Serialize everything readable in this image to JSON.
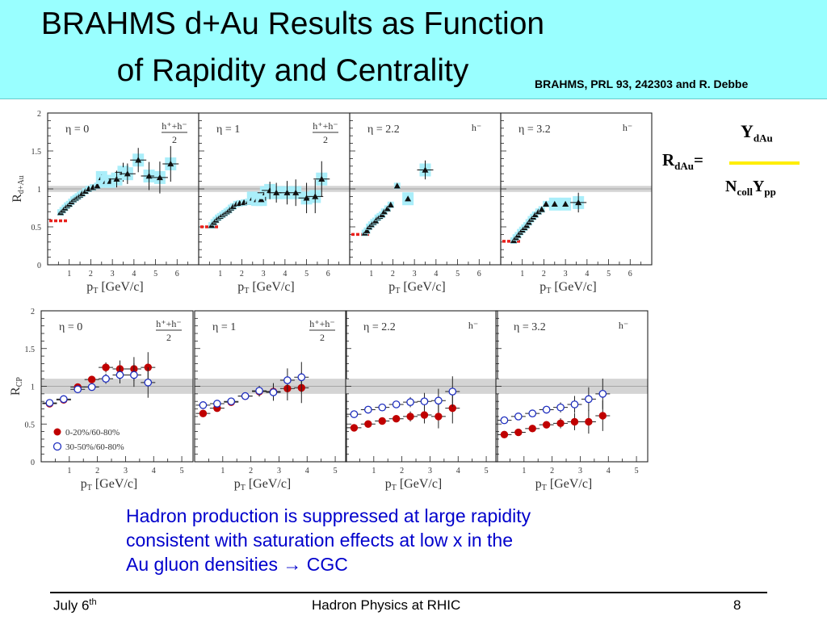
{
  "slide": {
    "title_line1": "BRAHMS d+Au Results as Function",
    "title_line2": "of Rapidity and Centrality",
    "citation": "BRAHMS, PRL 93, 242303 and R. Debbe",
    "formula": {
      "lhs": "R",
      "lhs_sub": "dAu",
      "equals": "=",
      "num": "Y",
      "num_sub": "dAu",
      "den1": "N",
      "den1_sub": "coll",
      "den2": "Y",
      "den2_sub": "pp",
      "fraction_color": "#ffee00"
    },
    "body_lines": [
      "Hadron production is suppressed at large rapidity",
      "consistent with saturation effects at low x in the",
      "Au gluon densities → CGC"
    ],
    "body_color": "#0000cc",
    "footer": {
      "date": "July 6",
      "date_sup": "th",
      "center": "Hadron Physics at RHIC",
      "page": "8"
    }
  },
  "chart_data": [
    {
      "type": "scatter",
      "quantity": "RdAu",
      "ylabel": "R",
      "ylabel_sub": "d+Au",
      "xlabel": "p",
      "xlabel_sub": "T",
      "xlabel_unit": "[GeV/c]",
      "ylim": [
        0,
        2
      ],
      "xlim": [
        0,
        7
      ],
      "yticks": [
        "0",
        "0.5",
        "1",
        "1.5",
        "2"
      ],
      "xticks": [
        "1",
        "2",
        "3",
        "4",
        "5",
        "6"
      ],
      "reference_band": [
        0.96,
        1.04
      ],
      "panels": [
        {
          "eta_label": "η = 0",
          "charge": "h⁺+h⁻",
          "charge_den": "2",
          "ref_low": 0.58,
          "series": [
            {
              "marker": "triangle",
              "points": [
                [
                  0.6,
                  0.69
                ],
                [
                  0.7,
                  0.72
                ],
                [
                  0.8,
                  0.75
                ],
                [
                  0.9,
                  0.78
                ],
                [
                  1.0,
                  0.8
                ],
                [
                  1.1,
                  0.83
                ],
                [
                  1.2,
                  0.86
                ],
                [
                  1.3,
                  0.88
                ],
                [
                  1.4,
                  0.9
                ],
                [
                  1.5,
                  0.92
                ],
                [
                  1.6,
                  0.94
                ],
                [
                  1.75,
                  0.97
                ],
                [
                  1.9,
                  1.0
                ],
                [
                  2.1,
                  1.02
                ],
                [
                  2.3,
                  1.04
                ],
                [
                  2.5,
                  1.15
                ],
                [
                  2.7,
                  1.1
                ],
                [
                  2.9,
                  1.1
                ],
                [
                  3.2,
                  1.13
                ],
                [
                  3.5,
                  1.22
                ],
                [
                  3.7,
                  1.2
                ],
                [
                  4.2,
                  1.38
                ],
                [
                  4.7,
                  1.17
                ],
                [
                  5.2,
                  1.15
                ],
                [
                  5.7,
                  1.33
                ]
              ]
            }
          ]
        },
        {
          "eta_label": "η = 1",
          "charge": "h⁺+h⁻",
          "charge_den": "2",
          "ref_low": 0.5,
          "series": [
            {
              "marker": "triangle",
              "points": [
                [
                  0.6,
                  0.52
                ],
                [
                  0.7,
                  0.56
                ],
                [
                  0.8,
                  0.59
                ],
                [
                  0.9,
                  0.62
                ],
                [
                  1.0,
                  0.64
                ],
                [
                  1.1,
                  0.66
                ],
                [
                  1.2,
                  0.68
                ],
                [
                  1.3,
                  0.7
                ],
                [
                  1.4,
                  0.72
                ],
                [
                  1.5,
                  0.75
                ],
                [
                  1.6,
                  0.77
                ],
                [
                  1.75,
                  0.8
                ],
                [
                  1.9,
                  0.81
                ],
                [
                  2.1,
                  0.82
                ],
                [
                  2.3,
                  0.83
                ],
                [
                  2.5,
                  0.88
                ],
                [
                  2.7,
                  0.86
                ],
                [
                  2.9,
                  0.86
                ],
                [
                  3.1,
                  0.95
                ],
                [
                  3.3,
                  0.98
                ],
                [
                  3.6,
                  0.95
                ],
                [
                  4.1,
                  0.95
                ],
                [
                  4.5,
                  0.95
                ],
                [
                  5.0,
                  0.88
                ],
                [
                  5.4,
                  0.9
                ],
                [
                  5.7,
                  1.13
                ]
              ]
            }
          ]
        },
        {
          "eta_label": "η = 2.2",
          "charge": "h⁻",
          "charge_den": "",
          "ref_low": 0.4,
          "series": [
            {
              "marker": "triangle",
              "points": [
                [
                  0.7,
                  0.42
                ],
                [
                  0.8,
                  0.45
                ],
                [
                  0.9,
                  0.5
                ],
                [
                  1.0,
                  0.53
                ],
                [
                  1.1,
                  0.56
                ],
                [
                  1.2,
                  0.58
                ],
                [
                  1.3,
                  0.62
                ],
                [
                  1.4,
                  0.64
                ],
                [
                  1.5,
                  0.66
                ],
                [
                  1.6,
                  0.7
                ],
                [
                  1.75,
                  0.74
                ],
                [
                  1.9,
                  0.79
                ],
                [
                  2.2,
                  1.04
                ],
                [
                  2.7,
                  0.87
                ],
                [
                  3.5,
                  1.25
                ]
              ]
            }
          ]
        },
        {
          "eta_label": "η = 3.2",
          "charge": "h⁻",
          "charge_den": "",
          "ref_low": 0.31,
          "series": [
            {
              "marker": "triangle",
              "points": [
                [
                  0.6,
                  0.32
                ],
                [
                  0.7,
                  0.36
                ],
                [
                  0.8,
                  0.39
                ],
                [
                  0.9,
                  0.43
                ],
                [
                  1.0,
                  0.46
                ],
                [
                  1.1,
                  0.49
                ],
                [
                  1.2,
                  0.52
                ],
                [
                  1.3,
                  0.56
                ],
                [
                  1.4,
                  0.6
                ],
                [
                  1.5,
                  0.63
                ],
                [
                  1.6,
                  0.66
                ],
                [
                  1.75,
                  0.7
                ],
                [
                  1.9,
                  0.73
                ],
                [
                  2.1,
                  0.8
                ],
                [
                  2.5,
                  0.8
                ],
                [
                  3.0,
                  0.8
                ],
                [
                  3.6,
                  0.82
                ]
              ]
            }
          ]
        }
      ]
    },
    {
      "type": "scatter",
      "quantity": "RCP",
      "ylabel": "R",
      "ylabel_sub": "CP",
      "xlabel": "p",
      "xlabel_sub": "T",
      "xlabel_unit": "[GeV/c]",
      "ylim": [
        0,
        2
      ],
      "xlim": [
        0,
        5.4
      ],
      "yticks": [
        "0",
        "0.5",
        "1",
        "1.5",
        "2"
      ],
      "xticks": [
        "1",
        "2",
        "3",
        "4",
        "5"
      ],
      "reference_band": [
        0.9,
        1.1
      ],
      "legend": [
        {
          "label": "0-20%/60-80%",
          "marker": "filled-circle",
          "color": "#c00000"
        },
        {
          "label": "30-50%/60-80%",
          "marker": "open-circle",
          "color": "#1f2fbf"
        }
      ],
      "panels": [
        {
          "eta_label": "η = 0",
          "charge": "h⁺+h⁻",
          "charge_den": "2",
          "series": [
            {
              "name": "0-20%/60-80%",
              "points": [
                [
                  0.3,
                  0.77
                ],
                [
                  0.8,
                  0.82
                ],
                [
                  1.3,
                  0.99
                ],
                [
                  1.8,
                  1.09
                ],
                [
                  2.3,
                  1.25
                ],
                [
                  2.8,
                  1.23
                ],
                [
                  3.3,
                  1.23
                ],
                [
                  3.8,
                  1.25
                ]
              ]
            },
            {
              "name": "30-50%/60-80%",
              "points": [
                [
                  0.3,
                  0.78
                ],
                [
                  0.8,
                  0.83
                ],
                [
                  1.3,
                  0.96
                ],
                [
                  1.8,
                  0.99
                ],
                [
                  2.3,
                  1.1
                ],
                [
                  2.8,
                  1.15
                ],
                [
                  3.3,
                  1.15
                ],
                [
                  3.8,
                  1.05
                ]
              ]
            }
          ]
        },
        {
          "eta_label": "η = 1",
          "charge": "h⁺+h⁻",
          "charge_den": "2",
          "series": [
            {
              "name": "0-20%/60-80%",
              "points": [
                [
                  0.3,
                  0.64
                ],
                [
                  0.8,
                  0.71
                ],
                [
                  1.3,
                  0.79
                ],
                [
                  1.8,
                  0.87
                ],
                [
                  2.3,
                  0.93
                ],
                [
                  2.8,
                  0.93
                ],
                [
                  3.3,
                  0.97
                ],
                [
                  3.8,
                  0.98
                ]
              ]
            },
            {
              "name": "30-50%/60-80%",
              "points": [
                [
                  0.3,
                  0.75
                ],
                [
                  0.8,
                  0.77
                ],
                [
                  1.3,
                  0.8
                ],
                [
                  1.8,
                  0.87
                ],
                [
                  2.3,
                  0.94
                ],
                [
                  2.8,
                  0.92
                ],
                [
                  3.3,
                  1.08
                ],
                [
                  3.8,
                  1.12
                ]
              ]
            }
          ]
        },
        {
          "eta_label": "η = 2.2",
          "charge": "h⁻",
          "charge_den": "",
          "series": [
            {
              "name": "0-20%/60-80%",
              "points": [
                [
                  0.3,
                  0.45
                ],
                [
                  0.8,
                  0.5
                ],
                [
                  1.3,
                  0.54
                ],
                [
                  1.8,
                  0.57
                ],
                [
                  2.3,
                  0.6
                ],
                [
                  2.8,
                  0.62
                ],
                [
                  3.3,
                  0.6
                ],
                [
                  3.8,
                  0.71
                ]
              ]
            },
            {
              "name": "30-50%/60-80%",
              "points": [
                [
                  0.3,
                  0.63
                ],
                [
                  0.8,
                  0.69
                ],
                [
                  1.3,
                  0.72
                ],
                [
                  1.8,
                  0.76
                ],
                [
                  2.3,
                  0.79
                ],
                [
                  2.8,
                  0.8
                ],
                [
                  3.3,
                  0.81
                ],
                [
                  3.8,
                  0.93
                ]
              ]
            }
          ]
        },
        {
          "eta_label": "η = 3.2",
          "charge": "h⁻",
          "charge_den": "",
          "series": [
            {
              "name": "0-20%/60-80%",
              "points": [
                [
                  0.3,
                  0.36
                ],
                [
                  0.8,
                  0.39
                ],
                [
                  1.3,
                  0.44
                ],
                [
                  1.8,
                  0.49
                ],
                [
                  2.3,
                  0.51
                ],
                [
                  2.8,
                  0.53
                ],
                [
                  3.3,
                  0.53
                ],
                [
                  3.8,
                  0.61
                ]
              ]
            },
            {
              "name": "30-50%/60-80%",
              "points": [
                [
                  0.3,
                  0.55
                ],
                [
                  0.8,
                  0.6
                ],
                [
                  1.3,
                  0.64
                ],
                [
                  1.8,
                  0.69
                ],
                [
                  2.3,
                  0.72
                ],
                [
                  2.8,
                  0.76
                ],
                [
                  3.3,
                  0.83
                ],
                [
                  3.8,
                  0.9
                ]
              ]
            }
          ]
        }
      ]
    }
  ]
}
